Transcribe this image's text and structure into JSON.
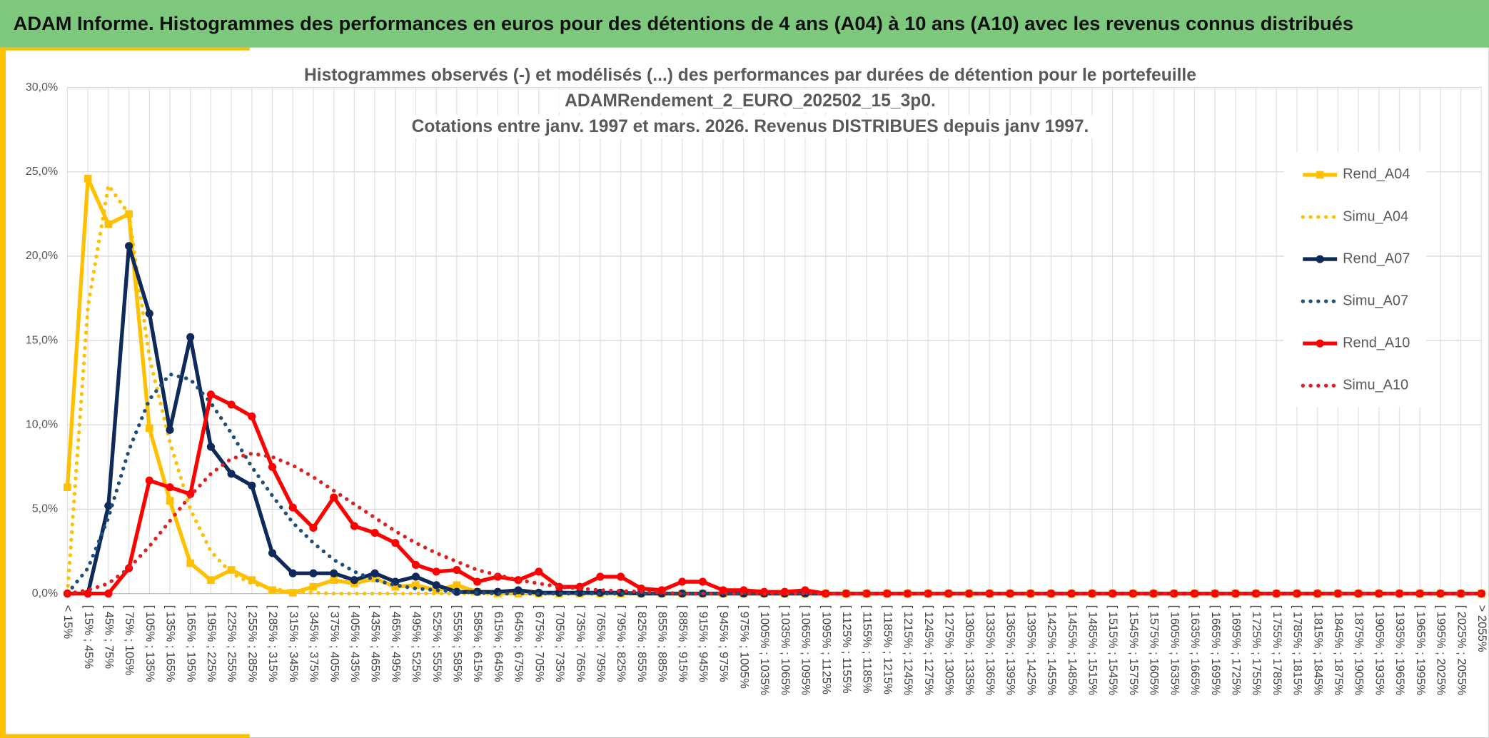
{
  "header": {
    "title": "ADAM Informe. Histogrammes des performances en euros pour des détentions de 4 ans (A04) à 10 ans (A10) avec les revenus connus distribués"
  },
  "chart_data": {
    "type": "line",
    "title": [
      "Histogrammes observés (-) et modélisés (...) des performances  par durées de détention pour le portefeuille",
      "ADAMRendement_2_EURO_202502_15_3p0.",
      "Cotations entre janv. 1997 et mars. 2026. Revenus DISTRIBUES depuis janv 1997."
    ],
    "categories": [
      "< 15%",
      "[ 15% ; 45%",
      "[ 45% ; 75%",
      "[ 75% ; 105%",
      "[ 105% ; 135%",
      "[ 135% ; 165%",
      "[ 165% ; 195%",
      "[ 195% ; 225%",
      "[ 225% ; 255%",
      "[ 255% ; 285%",
      "[ 285% ; 315%",
      "[ 315% ; 345%",
      "[ 345% ; 375%",
      "[ 375% ; 405%",
      "[ 405% ; 435%",
      "[ 435% ; 465%",
      "[ 465% ; 495%",
      "[ 495% ; 525%",
      "[ 525% ; 555%",
      "[ 555% ; 585%",
      "[ 585% ; 615%",
      "[ 615% ; 645%",
      "[ 645% ; 675%",
      "[ 675% ; 705%",
      "[ 705% ; 735%",
      "[ 735% ; 765%",
      "[ 765% ; 795%",
      "[ 795% ; 825%",
      "[ 825% ; 855%",
      "[ 855% ; 885%",
      "[ 885% ; 915%",
      "[ 915% ; 945%",
      "[ 945% ; 975%",
      "[ 975% ; 1005%",
      "[ 1005% ; 1035%",
      "[ 1035% ; 1065%",
      "[ 1065% ; 1095%",
      "[ 1095% ; 1125%",
      "[ 1125% ; 1155%",
      "[ 1155% ; 1185%",
      "[ 1185% ; 1215%",
      "[ 1215% ; 1245%",
      "[ 1245% ; 1275%",
      "[ 1275% ; 1305%",
      "[ 1305% ; 1335%",
      "[ 1335% ; 1365%",
      "[ 1365% ; 1395%",
      "[ 1395% ; 1425%",
      "[ 1425% ; 1455%",
      "[ 1455% ; 1485%",
      "[ 1485% ; 1515%",
      "[ 1515% ; 1545%",
      "[ 1545% ; 1575%",
      "[ 1575% ; 1605%",
      "[ 1605% ; 1635%",
      "[ 1635% ; 1665%",
      "[ 1665% ; 1695%",
      "[ 1695% ; 1725%",
      "[ 1725% ; 1755%",
      "[ 1755% ; 1785%",
      "[ 1785% ; 1815%",
      "[ 1815% ; 1845%",
      "[ 1845% ; 1875%",
      "[ 1875% ; 1905%",
      "[ 1905% ; 1935%",
      "[ 1935% ; 1965%",
      "[ 1965% ; 1995%",
      "[ 1995% ; 2025%",
      "[ 2025% ; 2055%",
      "> 2055%"
    ],
    "series": [
      {
        "name": "Rend_A04",
        "color": "#ffc000",
        "dash": false,
        "marker": "square",
        "values": [
          6.3,
          24.6,
          21.9,
          22.5,
          9.8,
          5.5,
          1.8,
          0.8,
          1.4,
          0.8,
          0.2,
          0.05,
          0.4,
          0.8,
          0.6,
          0.9,
          0.4,
          0.5,
          0.2,
          0.5,
          0.1,
          0,
          0,
          0,
          0,
          0,
          0,
          0,
          0,
          0,
          0,
          0,
          0,
          0,
          0,
          0,
          0,
          0,
          0,
          0,
          0,
          0,
          0,
          0,
          0,
          0,
          0,
          0,
          0,
          0,
          0,
          0,
          0,
          0,
          0,
          0,
          0,
          0,
          0,
          0,
          0,
          0,
          0,
          0,
          0,
          0,
          0,
          0,
          0,
          0
        ]
      },
      {
        "name": "Simu_A04",
        "color": "#ffc000",
        "dash": true,
        "marker": "none",
        "values": [
          0,
          17,
          24.2,
          22.5,
          14,
          9,
          5,
          2.5,
          1.2,
          0.6,
          0.3,
          0.1,
          0.05,
          0,
          0,
          0,
          0,
          0,
          0,
          0,
          0,
          0,
          0,
          0,
          0,
          0,
          0,
          0,
          0,
          0,
          0,
          0,
          0,
          0,
          0,
          0,
          0,
          0,
          0,
          0,
          0,
          0,
          0,
          0,
          0,
          0,
          0,
          0,
          0,
          0,
          0,
          0,
          0,
          0,
          0,
          0,
          0,
          0,
          0,
          0,
          0,
          0,
          0,
          0,
          0,
          0,
          0,
          0,
          0,
          0
        ]
      },
      {
        "name": "Rend_A07",
        "color": "#0f2a5a",
        "dash": false,
        "marker": "circle",
        "values": [
          0,
          0,
          5.2,
          20.6,
          16.6,
          9.7,
          15.2,
          8.7,
          7.1,
          6.4,
          2.4,
          1.2,
          1.2,
          1.2,
          0.8,
          1.2,
          0.7,
          1.0,
          0.5,
          0.1,
          0.1,
          0.1,
          0.2,
          0.05,
          0.05,
          0.05,
          0.05,
          0.05,
          0,
          0,
          0,
          0,
          0,
          0,
          0,
          0,
          0,
          0,
          0,
          0,
          0,
          0,
          0,
          0,
          0,
          0,
          0,
          0,
          0,
          0,
          0,
          0,
          0,
          0,
          0,
          0,
          0,
          0,
          0,
          0,
          0,
          0,
          0,
          0,
          0,
          0,
          0,
          0,
          0,
          0
        ]
      },
      {
        "name": "Simu_A07",
        "color": "#1f4e79",
        "dash": true,
        "marker": "none",
        "values": [
          0,
          1.5,
          4.5,
          8.5,
          11.5,
          13,
          12.7,
          11.3,
          9.5,
          7.5,
          5.8,
          4.2,
          3.0,
          2.0,
          1.3,
          0.8,
          0.5,
          0.3,
          0.2,
          0.1,
          0.05,
          0,
          0,
          0,
          0,
          0,
          0,
          0,
          0,
          0,
          0,
          0,
          0,
          0,
          0,
          0,
          0,
          0,
          0,
          0,
          0,
          0,
          0,
          0,
          0,
          0,
          0,
          0,
          0,
          0,
          0,
          0,
          0,
          0,
          0,
          0,
          0,
          0,
          0,
          0,
          0,
          0,
          0,
          0,
          0,
          0,
          0,
          0,
          0,
          0
        ]
      },
      {
        "name": "Rend_A10",
        "color": "#ff0000",
        "dash": false,
        "marker": "circle",
        "values": [
          0,
          0,
          0,
          1.5,
          6.7,
          6.3,
          5.9,
          11.8,
          11.2,
          10.5,
          7.5,
          5.1,
          3.9,
          5.7,
          4.0,
          3.6,
          3.0,
          1.7,
          1.3,
          1.4,
          0.7,
          1.0,
          0.8,
          1.3,
          0.4,
          0.4,
          1.0,
          1.0,
          0.3,
          0.2,
          0.7,
          0.7,
          0.2,
          0.2,
          0.1,
          0.1,
          0.2,
          0,
          0,
          0,
          0,
          0,
          0,
          0,
          0,
          0,
          0,
          0,
          0,
          0,
          0,
          0,
          0,
          0,
          0,
          0,
          0,
          0,
          0,
          0,
          0,
          0,
          0,
          0,
          0,
          0,
          0,
          0,
          0,
          0
        ]
      },
      {
        "name": "Simu_A10",
        "color": "#e02020",
        "dash": true,
        "marker": "none",
        "values": [
          0,
          0.2,
          0.6,
          1.5,
          2.8,
          4.3,
          5.8,
          7.1,
          8.0,
          8.3,
          8.1,
          7.6,
          6.9,
          6.1,
          5.3,
          4.5,
          3.7,
          3.0,
          2.4,
          1.9,
          1.4,
          1.1,
          0.8,
          0.6,
          0.4,
          0.3,
          0.2,
          0.15,
          0.1,
          0.05,
          0,
          0,
          0,
          0,
          0,
          0,
          0,
          0,
          0,
          0,
          0,
          0,
          0,
          0,
          0,
          0,
          0,
          0,
          0,
          0,
          0,
          0,
          0,
          0,
          0,
          0,
          0,
          0,
          0,
          0,
          0,
          0,
          0,
          0,
          0,
          0,
          0,
          0,
          0,
          0
        ]
      }
    ],
    "ylim": [
      0,
      30
    ],
    "yticks": [
      {
        "value": 0,
        "label": "0,0%"
      },
      {
        "value": 5,
        "label": "5,0%"
      },
      {
        "value": 10,
        "label": "10,0%"
      },
      {
        "value": 15,
        "label": "15,0%"
      },
      {
        "value": 20,
        "label": "20,0%"
      },
      {
        "value": 25,
        "label": "25,0%"
      },
      {
        "value": 30,
        "label": "30,0%"
      }
    ],
    "grid": true,
    "legend": "right"
  }
}
